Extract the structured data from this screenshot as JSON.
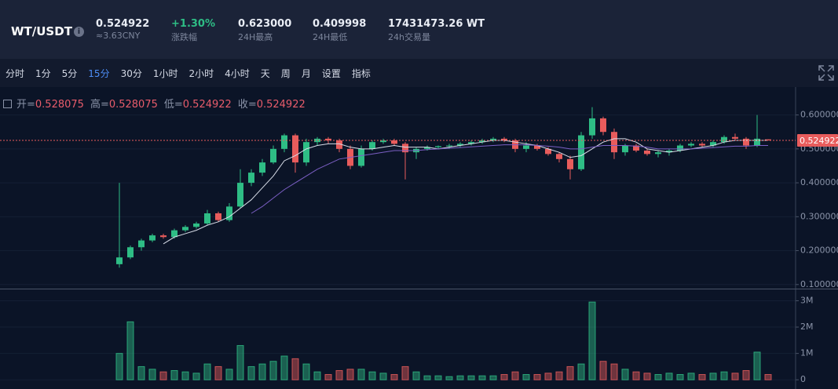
{
  "header": {
    "pair": "WT/USDT",
    "stats": [
      {
        "value": "0.524922",
        "label": "≈3.63CNY"
      },
      {
        "value": "+1.30%",
        "label": "涨跌幅",
        "color": "#2ebd85"
      },
      {
        "value": "0.623000",
        "label": "24H最高"
      },
      {
        "value": "0.409998",
        "label": "24H最低"
      },
      {
        "value": "17431473.26 WT",
        "label": "24h交易量"
      }
    ]
  },
  "toolbar": {
    "items": [
      "分时",
      "1分",
      "5分",
      "15分",
      "30分",
      "1小时",
      "2小时",
      "4小时",
      "天",
      "周",
      "月",
      "设置",
      "指标"
    ],
    "active": 3
  },
  "chart_data": {
    "type": "candlestick",
    "ohlc_labels": [
      "开=",
      "高=",
      "低=",
      "收="
    ],
    "ohlc_values": [
      0.528075,
      0.528075,
      0.524922,
      0.524922
    ],
    "last_price": 0.524922,
    "up_color": "#2ebd85",
    "down_color": "#e85c5c",
    "candles": {
      "open": [
        0.16,
        0.18,
        0.21,
        0.23,
        0.245,
        0.24,
        0.26,
        0.27,
        0.28,
        0.31,
        0.29,
        0.33,
        0.4,
        0.43,
        0.46,
        0.5,
        0.54,
        0.46,
        0.52,
        0.53,
        0.525,
        0.5,
        0.45,
        0.5,
        0.52,
        0.525,
        0.515,
        0.49,
        0.5,
        0.505,
        0.508,
        0.51,
        0.515,
        0.52,
        0.525,
        0.53,
        0.525,
        0.5,
        0.51,
        0.5,
        0.485,
        0.47,
        0.44,
        0.54,
        0.59,
        0.55,
        0.49,
        0.51,
        0.495,
        0.485,
        0.49,
        0.495,
        0.51,
        0.515,
        0.51,
        0.52,
        0.535,
        0.53,
        0.51,
        0.528075
      ],
      "high": [
        0.4,
        0.215,
        0.235,
        0.25,
        0.25,
        0.265,
        0.275,
        0.285,
        0.32,
        0.315,
        0.34,
        0.44,
        0.44,
        0.47,
        0.51,
        0.545,
        0.545,
        0.53,
        0.535,
        0.535,
        0.53,
        0.51,
        0.51,
        0.525,
        0.53,
        0.53,
        0.52,
        0.505,
        0.51,
        0.51,
        0.515,
        0.52,
        0.525,
        0.53,
        0.535,
        0.535,
        0.53,
        0.52,
        0.515,
        0.505,
        0.49,
        0.48,
        0.55,
        0.623,
        0.595,
        0.56,
        0.515,
        0.515,
        0.5,
        0.495,
        0.5,
        0.515,
        0.52,
        0.52,
        0.525,
        0.54,
        0.545,
        0.535,
        0.6,
        0.528075
      ],
      "low": [
        0.15,
        0.175,
        0.2,
        0.225,
        0.235,
        0.235,
        0.255,
        0.265,
        0.275,
        0.285,
        0.285,
        0.325,
        0.39,
        0.42,
        0.455,
        0.49,
        0.43,
        0.45,
        0.51,
        0.515,
        0.49,
        0.44,
        0.445,
        0.495,
        0.515,
        0.51,
        0.41,
        0.47,
        0.495,
        0.5,
        0.5,
        0.505,
        0.51,
        0.515,
        0.52,
        0.52,
        0.49,
        0.49,
        0.495,
        0.48,
        0.46,
        0.41,
        0.435,
        0.53,
        0.54,
        0.47,
        0.48,
        0.49,
        0.48,
        0.475,
        0.48,
        0.49,
        0.505,
        0.505,
        0.505,
        0.515,
        0.525,
        0.5,
        0.505,
        0.524922
      ],
      "close": [
        0.18,
        0.21,
        0.23,
        0.245,
        0.24,
        0.26,
        0.27,
        0.28,
        0.31,
        0.29,
        0.33,
        0.4,
        0.43,
        0.46,
        0.5,
        0.54,
        0.46,
        0.52,
        0.53,
        0.525,
        0.5,
        0.45,
        0.5,
        0.52,
        0.525,
        0.515,
        0.49,
        0.5,
        0.505,
        0.508,
        0.51,
        0.515,
        0.52,
        0.525,
        0.53,
        0.525,
        0.5,
        0.51,
        0.5,
        0.485,
        0.47,
        0.44,
        0.54,
        0.59,
        0.55,
        0.49,
        0.51,
        0.495,
        0.485,
        0.49,
        0.495,
        0.51,
        0.515,
        0.51,
        0.52,
        0.535,
        0.53,
        0.51,
        0.53,
        0.524922
      ]
    },
    "volume": [
      1000000,
      2200000,
      500000,
      400000,
      300000,
      350000,
      300000,
      250000,
      600000,
      500000,
      400000,
      1300000,
      500000,
      600000,
      700000,
      900000,
      800000,
      600000,
      300000,
      200000,
      350000,
      400000,
      400000,
      300000,
      250000,
      200000,
      500000,
      300000,
      150000,
      150000,
      120000,
      150000,
      150000,
      150000,
      150000,
      200000,
      300000,
      200000,
      200000,
      250000,
      300000,
      500000,
      600000,
      2950000,
      700000,
      600000,
      400000,
      300000,
      250000,
      200000,
      250000,
      200000,
      250000,
      200000,
      250000,
      300000,
      250000,
      350000,
      1050000,
      200000
    ],
    "ma": [
      {
        "color": "#d8dde8",
        "values": [
          null,
          null,
          null,
          null,
          0.22,
          0.24,
          0.25,
          0.26,
          0.275,
          0.285,
          0.3,
          0.325,
          0.35,
          0.385,
          0.42,
          0.465,
          0.48,
          0.5,
          0.51,
          0.515,
          0.515,
          0.505,
          0.5,
          0.5,
          0.505,
          0.51,
          0.505,
          0.505,
          0.505,
          0.5,
          0.505,
          0.51,
          0.515,
          0.52,
          0.525,
          0.525,
          0.52,
          0.515,
          0.51,
          0.5,
          0.49,
          0.475,
          0.48,
          0.5,
          0.52,
          0.53,
          0.53,
          0.52,
          0.5,
          0.495,
          0.49,
          0.495,
          0.5,
          0.505,
          0.51,
          0.52,
          0.525,
          0.525,
          0.525,
          0.525
        ]
      },
      {
        "color": "#7b5fc4",
        "values": [
          null,
          null,
          null,
          null,
          null,
          null,
          null,
          null,
          null,
          null,
          null,
          null,
          0.31,
          0.33,
          0.355,
          0.38,
          0.4,
          0.42,
          0.44,
          0.455,
          0.47,
          0.475,
          0.48,
          0.485,
          0.49,
          0.495,
          0.495,
          0.495,
          0.498,
          0.5,
          0.502,
          0.504,
          0.506,
          0.508,
          0.51,
          0.512,
          0.512,
          0.512,
          0.51,
          0.508,
          0.505,
          0.5,
          0.5,
          0.505,
          0.51,
          0.51,
          0.51,
          0.508,
          0.505,
          0.5,
          0.5,
          0.5,
          0.5,
          0.502,
          0.504,
          0.506,
          0.508,
          0.508,
          0.51,
          0.51
        ]
      }
    ],
    "ylim": [
      0.088,
      0.68
    ],
    "yticks": [
      {
        "value": 0.1,
        "label": "0.100000"
      },
      {
        "value": 0.2,
        "label": "0.200000"
      },
      {
        "value": 0.3,
        "label": "0.300000"
      },
      {
        "value": 0.4,
        "label": "0.400000"
      },
      {
        "value": 0.5,
        "label": "0.500000"
      },
      {
        "value": 0.6,
        "label": "0.600000"
      }
    ],
    "volume_ylim": [
      -350000,
      3400000
    ],
    "volume_yticks": [
      0,
      {
        "value": 1000000,
        "label": "1M"
      },
      {
        "value": 2000000,
        "label": "2M"
      },
      {
        "value": 3000000,
        "label": "3M"
      }
    ],
    "grid": true
  }
}
